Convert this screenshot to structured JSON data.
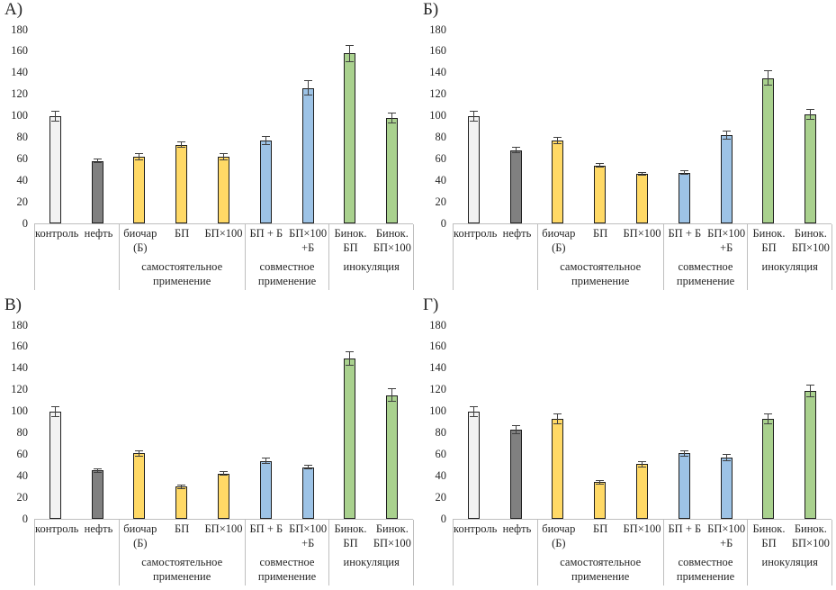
{
  "figure": {
    "background": "#ffffff",
    "panels": [
      "А)",
      "Б)",
      "В)",
      "Г)"
    ]
  },
  "colors": {
    "control": "#F2F2F2",
    "oil": "#808080",
    "yellow": "#FFD966",
    "blue": "#9DC3E6",
    "green": "#A9D18E",
    "bar_border": "#1F1F1F",
    "axis_line": "#BFBFBF",
    "error_bar": "#404040",
    "text": "#262626"
  },
  "fill_by_category": [
    "control",
    "oil",
    "yellow",
    "yellow",
    "yellow",
    "blue",
    "blue",
    "green",
    "green"
  ],
  "category_axis": {
    "groups": [
      {
        "label": "",
        "categories": [
          "контроль",
          "нефть"
        ]
      },
      {
        "label": "самостоятельное\nприменение",
        "categories": [
          "биочар\n(Б)",
          "БП",
          "БП×100"
        ]
      },
      {
        "label": "совместное\nприменение",
        "categories": [
          "БП + Б",
          "БП×100\n+Б"
        ]
      },
      {
        "label": "инокуляция",
        "categories": [
          "Бинок.\nБП",
          "Бинок.\nБП×100"
        ]
      }
    ]
  },
  "chart_data": [
    {
      "type": "bar",
      "panel": "А)",
      "title": "",
      "xlabel": "",
      "ylabel": "",
      "ylim": [
        0,
        180
      ],
      "yticks": [
        0,
        20,
        40,
        60,
        80,
        100,
        120,
        140,
        160,
        180
      ],
      "grid": false,
      "legend": false,
      "categories": [
        "контроль",
        "нефть",
        "биочар (Б)",
        "БП",
        "БП×100",
        "БП + Б",
        "БП×100 +Б",
        "Бинок. БП",
        "Бинок. БП×100"
      ],
      "group_labels": [
        "самостоятельное применение",
        "совместное применение",
        "инокуляция"
      ],
      "values": [
        100,
        58,
        62,
        73,
        62,
        77,
        126,
        158,
        98
      ],
      "errors": [
        5,
        2,
        3,
        3,
        3,
        4,
        7,
        8,
        5
      ]
    },
    {
      "type": "bar",
      "panel": "Б)",
      "title": "",
      "xlabel": "",
      "ylabel": "",
      "ylim": [
        0,
        180
      ],
      "yticks": [
        0,
        20,
        40,
        60,
        80,
        100,
        120,
        140,
        160,
        180
      ],
      "grid": false,
      "legend": false,
      "categories": [
        "контроль",
        "нефть",
        "биочар (Б)",
        "БП",
        "БП×100",
        "БП + Б",
        "БП×100 +Б",
        "Бинок. БП",
        "Бинок. БП×100"
      ],
      "group_labels": [
        "самостоятельное применение",
        "совместное применение",
        "инокуляция"
      ],
      "values": [
        100,
        68,
        77,
        54,
        46,
        47,
        82,
        135,
        101
      ],
      "errors": [
        5,
        3,
        3,
        2,
        2,
        2,
        4,
        7,
        5
      ]
    },
    {
      "type": "bar",
      "panel": "В)",
      "title": "",
      "xlabel": "",
      "ylabel": "",
      "ylim": [
        0,
        180
      ],
      "yticks": [
        0,
        20,
        40,
        60,
        80,
        100,
        120,
        140,
        160,
        180
      ],
      "grid": false,
      "legend": false,
      "categories": [
        "контроль",
        "нефть",
        "биочар (Б)",
        "БП",
        "БП×100",
        "БП + Б",
        "БП×100 +Б",
        "Бинок. БП",
        "Бинок. БП×100"
      ],
      "group_labels": [
        "самостоятельное применение",
        "совместное применение",
        "инокуляция"
      ],
      "values": [
        100,
        45,
        61,
        30,
        42,
        54,
        48,
        149,
        115
      ],
      "errors": [
        5,
        2,
        3,
        2,
        2,
        3,
        2,
        7,
        6
      ]
    },
    {
      "type": "bar",
      "panel": "Г)",
      "title": "",
      "xlabel": "",
      "ylabel": "",
      "ylim": [
        0,
        180
      ],
      "yticks": [
        0,
        20,
        40,
        60,
        80,
        100,
        120,
        140,
        160,
        180
      ],
      "grid": false,
      "legend": false,
      "categories": [
        "контроль",
        "нефть",
        "биочар (Б)",
        "БП",
        "БП×100",
        "БП + Б",
        "БП×100 +Б",
        "Бинок. БП",
        "Бинок. БП×100"
      ],
      "group_labels": [
        "самостоятельное применение",
        "совместное применение",
        "инокуляция"
      ],
      "values": [
        100,
        83,
        93,
        34,
        51,
        61,
        57,
        93,
        119
      ],
      "errors": [
        5,
        4,
        5,
        2,
        3,
        3,
        3,
        5,
        6
      ]
    }
  ]
}
